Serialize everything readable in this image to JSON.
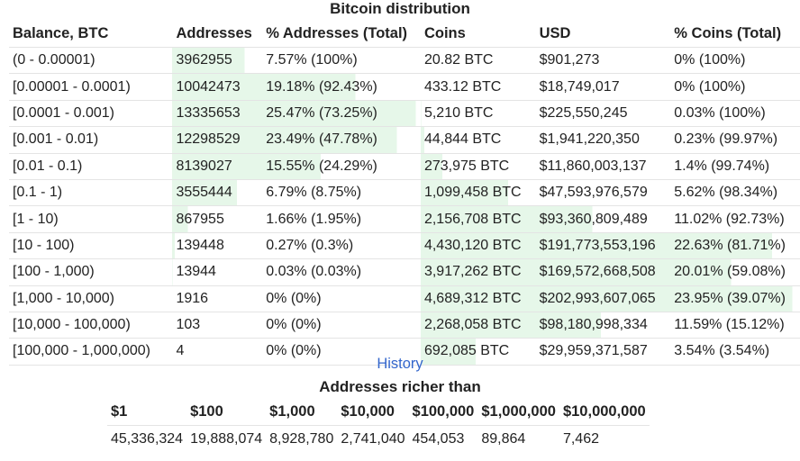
{
  "title": "Bitcoin distribution",
  "colors": {
    "highlight": "#e6f7e9",
    "link": "#3366cc",
    "border": "#e4e4e4"
  },
  "headers": [
    "Balance, BTC",
    "Addresses",
    "% Addresses (Total)",
    "Coins",
    "USD",
    "% Coins (Total)"
  ],
  "rows": [
    {
      "balance": "(0 - 0.00001)",
      "addresses": "3962955",
      "pct_addresses": "7.57% (100%)",
      "coins": "20.82 BTC",
      "usd": "$901,273",
      "pct_coins": "0% (100%)",
      "addr_share": 0.0757,
      "coin_share": 0.0
    },
    {
      "balance": "[0.00001 - 0.0001)",
      "addresses": "10042473",
      "pct_addresses": "19.18% (92.43%)",
      "coins": "433.12 BTC",
      "usd": "$18,749,017",
      "pct_coins": "0% (100%)",
      "addr_share": 0.1918,
      "coin_share": 0.0
    },
    {
      "balance": "[0.0001 - 0.001)",
      "addresses": "13335653",
      "pct_addresses": "25.47% (73.25%)",
      "coins": "5,210 BTC",
      "usd": "$225,550,245",
      "pct_coins": "0.03% (100%)",
      "addr_share": 0.2547,
      "coin_share": 0.0003
    },
    {
      "balance": "[0.001 - 0.01)",
      "addresses": "12298529",
      "pct_addresses": "23.49% (47.78%)",
      "coins": "44,844 BTC",
      "usd": "$1,941,220,350",
      "pct_coins": "0.23% (99.97%)",
      "addr_share": 0.2349,
      "coin_share": 0.0023
    },
    {
      "balance": "[0.01 - 0.1)",
      "addresses": "8139027",
      "pct_addresses": "15.55% (24.29%)",
      "coins": "273,975 BTC",
      "usd": "$11,860,003,137",
      "pct_coins": "1.4% (99.74%)",
      "addr_share": 0.1555,
      "coin_share": 0.014
    },
    {
      "balance": "[0.1 - 1)",
      "addresses": "3555444",
      "pct_addresses": "6.79% (8.75%)",
      "coins": "1,099,458 BTC",
      "usd": "$47,593,976,579",
      "pct_coins": "5.62% (98.34%)",
      "addr_share": 0.0679,
      "coin_share": 0.0562
    },
    {
      "balance": "[1 - 10)",
      "addresses": "867955",
      "pct_addresses": "1.66% (1.95%)",
      "coins": "2,156,708 BTC",
      "usd": "$93,360,809,489",
      "pct_coins": "11.02% (92.73%)",
      "addr_share": 0.0166,
      "coin_share": 0.1102
    },
    {
      "balance": "[10 - 100)",
      "addresses": "139448",
      "pct_addresses": "0.27% (0.3%)",
      "coins": "4,430,120 BTC",
      "usd": "$191,773,553,196",
      "pct_coins": "22.63% (81.71%)",
      "addr_share": 0.0027,
      "coin_share": 0.2263
    },
    {
      "balance": "[100 - 1,000)",
      "addresses": "13944",
      "pct_addresses": "0.03% (0.03%)",
      "coins": "3,917,262 BTC",
      "usd": "$169,572,668,508",
      "pct_coins": "20.01% (59.08%)",
      "addr_share": 0.0003,
      "coin_share": 0.2001
    },
    {
      "balance": "[1,000 - 10,000)",
      "addresses": "1916",
      "pct_addresses": "0% (0%)",
      "coins": "4,689,312 BTC",
      "usd": "$202,993,607,065",
      "pct_coins": "23.95% (39.07%)",
      "addr_share": 0.0,
      "coin_share": 0.2395
    },
    {
      "balance": "[10,000 - 100,000)",
      "addresses": "103",
      "pct_addresses": "0% (0%)",
      "coins": "2,268,058 BTC",
      "usd": "$98,180,998,334",
      "pct_coins": "11.59% (15.12%)",
      "addr_share": 0.0,
      "coin_share": 0.1159
    },
    {
      "balance": "[100,000 - 1,000,000)",
      "addresses": "4",
      "pct_addresses": "0% (0%)",
      "coins": "692,085 BTC",
      "usd": "$29,959,371,587",
      "pct_coins": "3.54% (3.54%)",
      "addr_share": 0.0,
      "coin_share": 0.0354
    }
  ],
  "history_link": "History",
  "richer": {
    "title": "Addresses richer than",
    "headers": [
      "$1",
      "$100",
      "$1,000",
      "$10,000",
      "$100,000",
      "$1,000,000",
      "$10,000,000"
    ],
    "values": [
      "45,336,324",
      "19,888,074",
      "8,928,780",
      "2,741,040",
      "454,053",
      "89,864",
      "7,462"
    ]
  }
}
